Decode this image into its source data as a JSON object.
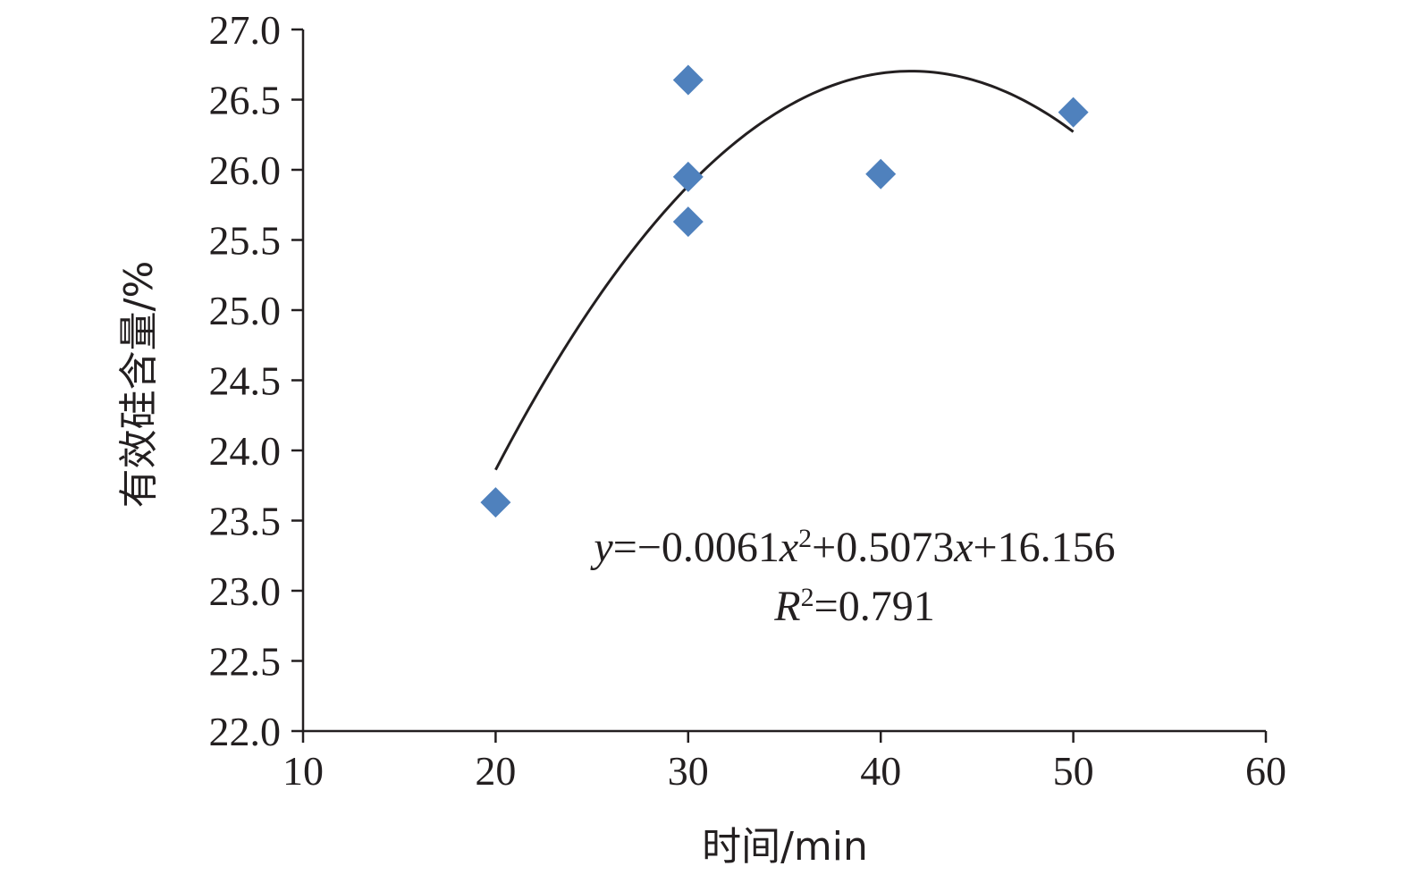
{
  "chart_data": {
    "type": "scatter",
    "xlabel": "时间/min",
    "ylabel": "有效硅含量/%",
    "xlim": [
      10,
      60
    ],
    "ylim": [
      22.0,
      27.0
    ],
    "x_ticks": [
      "10",
      "20",
      "30",
      "40",
      "50",
      "60"
    ],
    "y_ticks": [
      "22.0",
      "22.5",
      "23.0",
      "23.5",
      "24.0",
      "24.5",
      "25.0",
      "25.5",
      "26.0",
      "26.5",
      "27.0"
    ],
    "grid": false,
    "marker_color": "#4f81bd",
    "series": [
      {
        "points": [
          {
            "x": 20,
            "y": 23.63
          },
          {
            "x": 30,
            "y": 26.64
          },
          {
            "x": 30,
            "y": 25.95
          },
          {
            "x": 30,
            "y": 25.63
          },
          {
            "x": 40,
            "y": 25.97
          },
          {
            "x": 50,
            "y": 26.41
          }
        ]
      }
    ],
    "trendline": {
      "type": "polynomial",
      "coefficients": [
        -0.0061,
        0.5073,
        16.156
      ],
      "x_range": [
        20,
        50
      ]
    },
    "annotations": {
      "equation": {
        "y": "y",
        "eq1": "=−0.0061",
        "x1": "x",
        "sup1": "2",
        "eq2": "+0.5073",
        "x2": "x",
        "eq3": "+16.156"
      },
      "r2": {
        "R": "R",
        "sup": "2",
        "value": "=0.791"
      }
    }
  }
}
